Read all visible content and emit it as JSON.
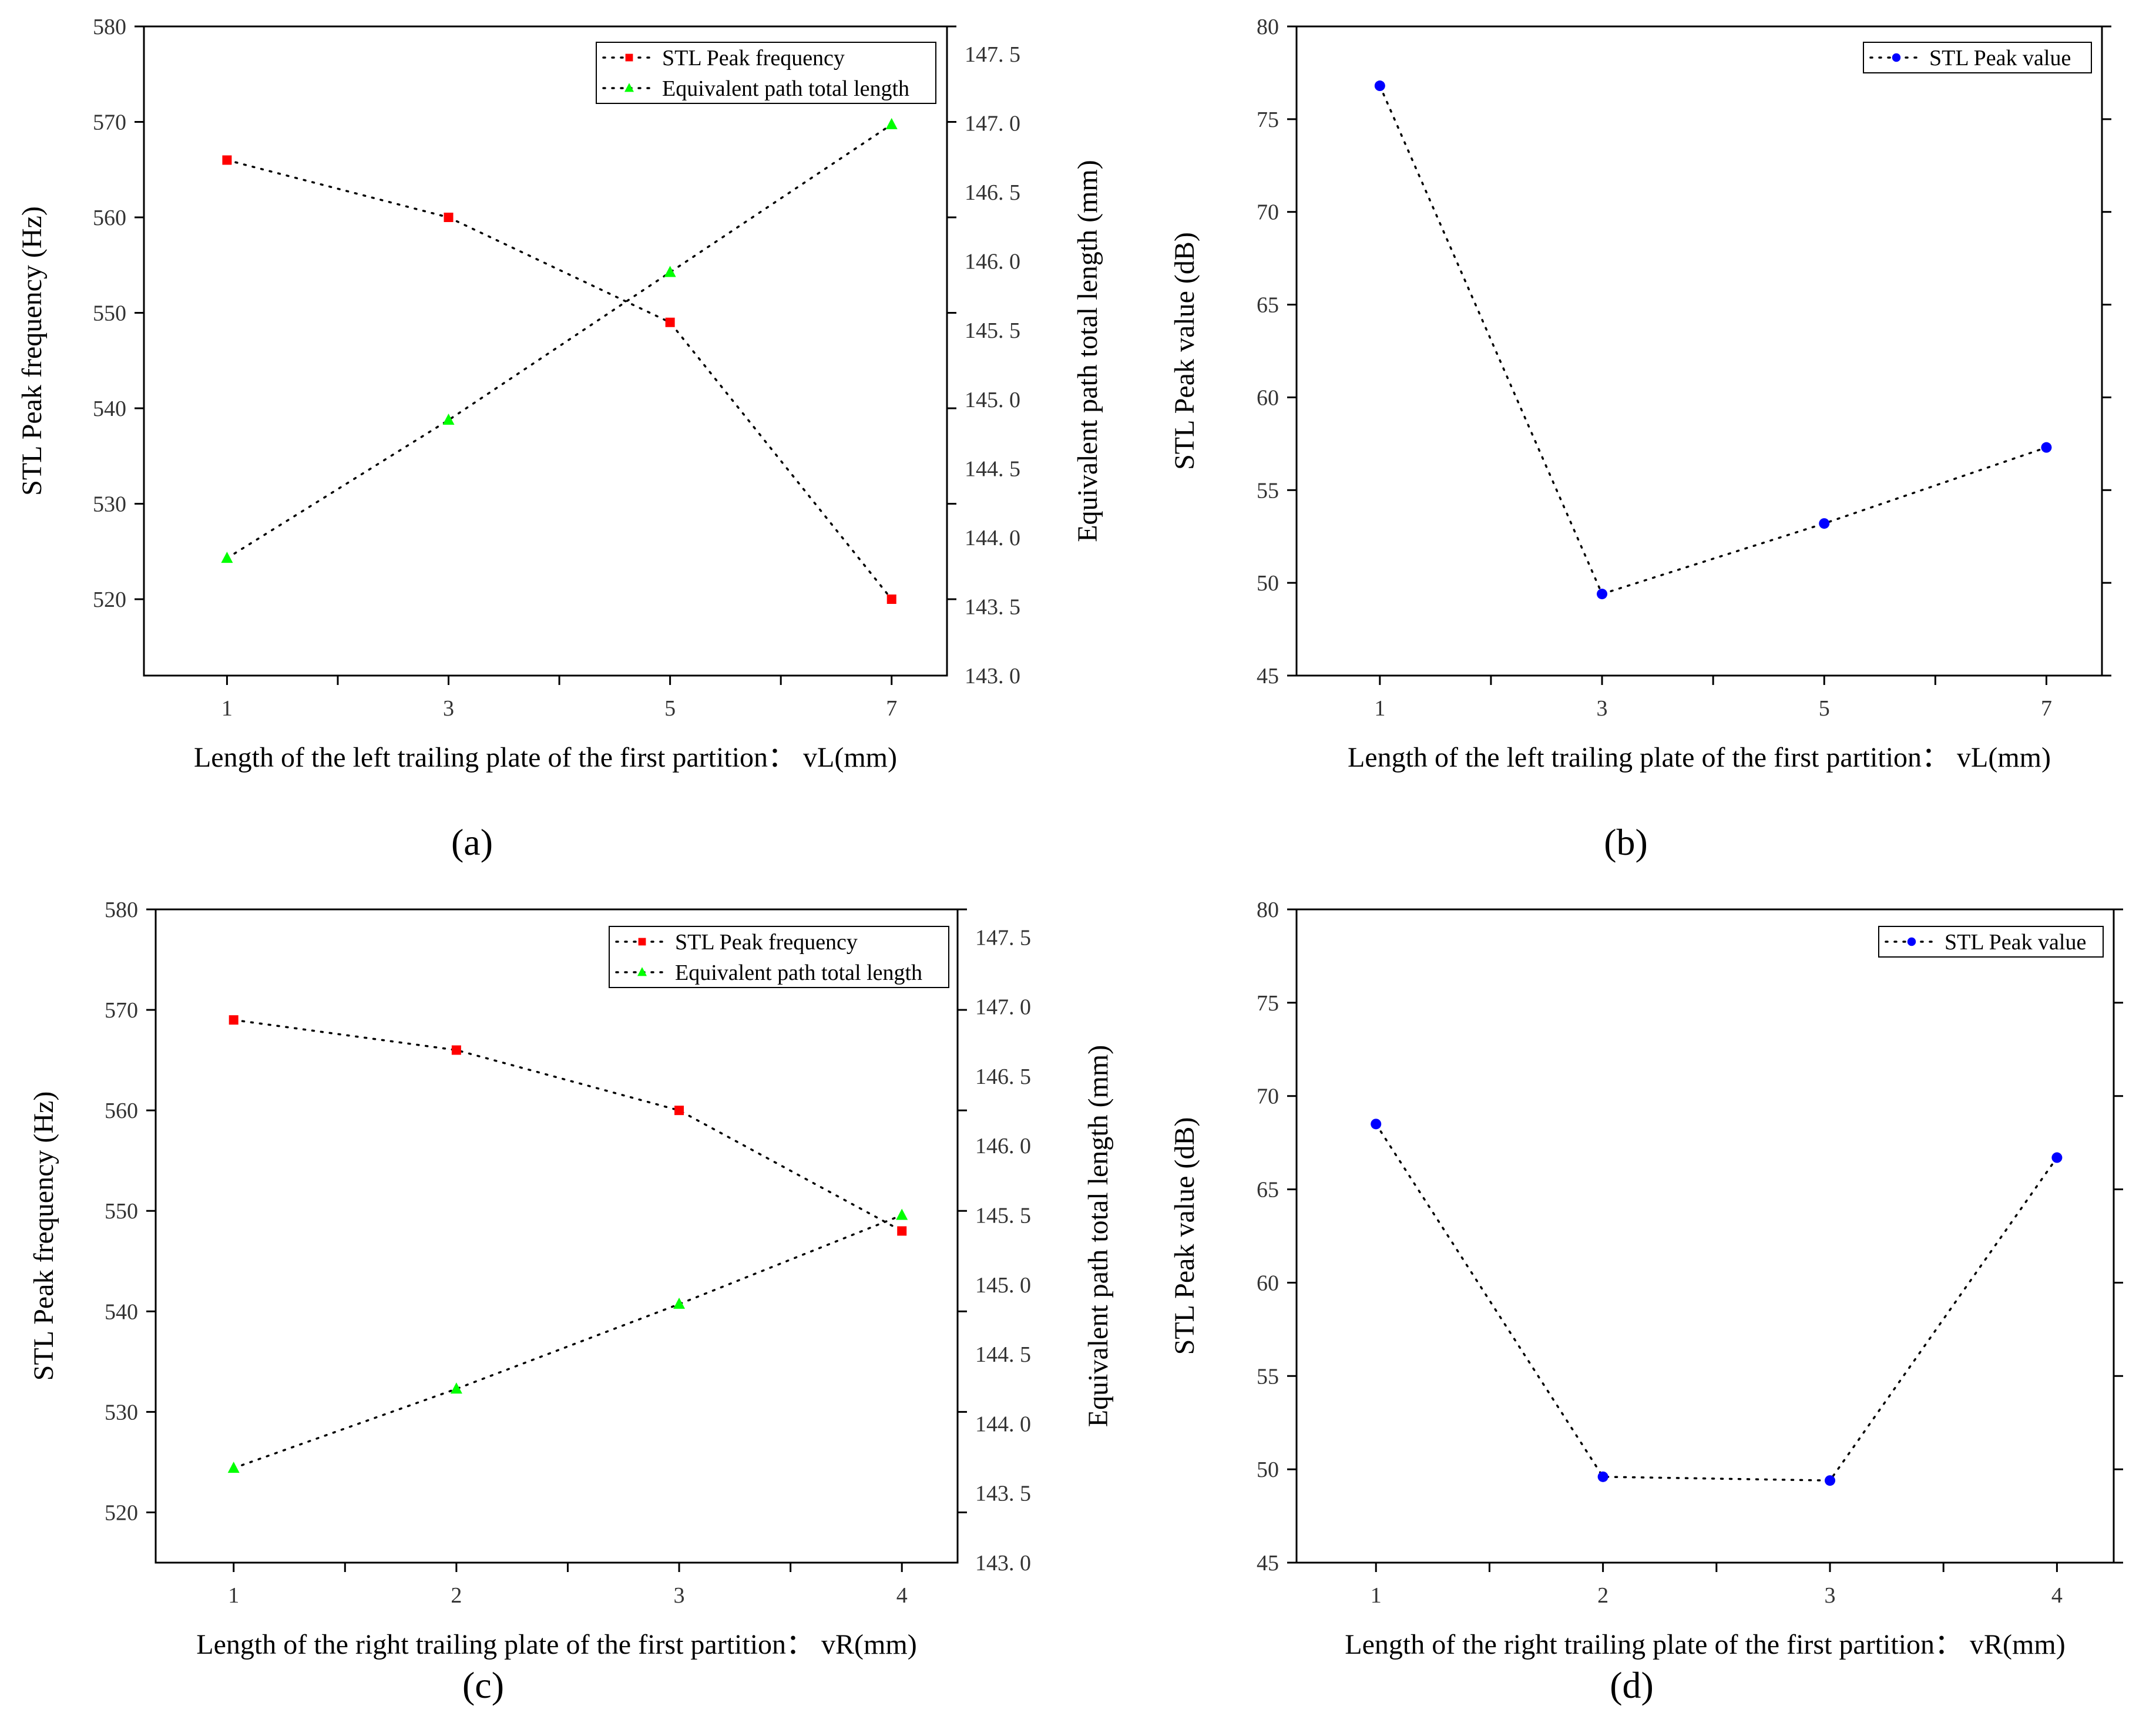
{
  "chart_data": [
    {
      "panel": "a",
      "panel_label": "(a)",
      "type": "line",
      "xlabel": "Length of the left trailing plate of the first partition： vL(mm)",
      "ylabel": "STL Peak frequency (Hz)",
      "y2label": "Equivalent path total length (mm)",
      "xlim": [
        0.25,
        7.5
      ],
      "xticks": [
        1,
        2,
        3,
        4,
        5,
        6,
        7
      ],
      "xtick_labels": [
        "1",
        "",
        "3",
        "",
        "5",
        "",
        "7"
      ],
      "ylim": [
        512,
        580
      ],
      "yticks": [
        520,
        530,
        540,
        550,
        560,
        570,
        580
      ],
      "ytick_labels": [
        "520",
        "530",
        "540",
        "550",
        "560",
        "570",
        "580"
      ],
      "y2lim": [
        143.0,
        147.7
      ],
      "y2ticks": [
        143.0,
        143.5,
        144.0,
        144.5,
        145.0,
        145.5,
        146.0,
        146.5,
        147.0,
        147.5
      ],
      "y2tick_labels": [
        "143. 0",
        "143. 5",
        "144. 0",
        "144. 5",
        "145. 0",
        "145. 5",
        "146. 0",
        "146. 5",
        "147. 0",
        "147. 5"
      ],
      "legend": "top-right",
      "series": [
        {
          "name": "STL Peak frequency",
          "axis": "y",
          "marker": "square",
          "color": "#ff0000",
          "x": [
            1,
            3,
            5,
            7
          ],
          "values": [
            566,
            560,
            549,
            520
          ]
        },
        {
          "name": "Equivalent path total length",
          "axis": "y2",
          "marker": "triangle",
          "color": "#00ff00",
          "x": [
            1,
            3,
            5,
            7
          ],
          "values": [
            143.85,
            144.85,
            145.92,
            146.99
          ]
        }
      ]
    },
    {
      "panel": "b",
      "panel_label": "(b)",
      "type": "line",
      "xlabel": "Length of the left trailing plate of the first partition： vL(mm)",
      "ylabel": "STL Peak value (dB)",
      "xlim": [
        0.25,
        7.5
      ],
      "xticks": [
        1,
        2,
        3,
        4,
        5,
        6,
        7
      ],
      "xtick_labels": [
        "1",
        "",
        "3",
        "",
        "5",
        "",
        "7"
      ],
      "ylim": [
        45,
        80
      ],
      "yticks": [
        45,
        50,
        55,
        60,
        65,
        70,
        75,
        80
      ],
      "ytick_labels": [
        "45",
        "50",
        "55",
        "60",
        "65",
        "70",
        "75",
        "80"
      ],
      "legend": "top-right",
      "series": [
        {
          "name": "STL Peak value",
          "axis": "y",
          "marker": "circle",
          "color": "#0000ff",
          "x": [
            1,
            3,
            5,
            7
          ],
          "values": [
            76.8,
            49.4,
            53.2,
            57.3
          ]
        }
      ]
    },
    {
      "panel": "c",
      "panel_label": "(c)",
      "type": "line",
      "xlabel": "Length of the right trailing plate of the first partition： vR(mm)",
      "ylabel": "STL Peak frequency (Hz)",
      "y2label": "Equivalent path total length (mm)",
      "xlim": [
        0.65,
        4.25
      ],
      "xticks": [
        1,
        1.5,
        2,
        2.5,
        3,
        3.5,
        4
      ],
      "xtick_labels": [
        "1",
        "",
        "2",
        "",
        "3",
        "",
        "4"
      ],
      "ylim": [
        515,
        580
      ],
      "yticks": [
        520,
        530,
        540,
        550,
        560,
        570,
        580
      ],
      "ytick_labels": [
        "520",
        "530",
        "540",
        "550",
        "560",
        "570",
        "580"
      ],
      "y2lim": [
        143.0,
        147.7
      ],
      "y2ticks": [
        143.0,
        143.5,
        144.0,
        144.5,
        145.0,
        145.5,
        146.0,
        146.5,
        147.0,
        147.5
      ],
      "y2tick_labels": [
        "143. 0",
        "143. 5",
        "144. 0",
        "144. 5",
        "145. 0",
        "145. 5",
        "146. 0",
        "146. 5",
        "147. 0",
        "147. 5"
      ],
      "legend": "top-right",
      "series": [
        {
          "name": "STL Peak frequency",
          "axis": "y",
          "marker": "square",
          "color": "#ff0000",
          "x": [
            1,
            2,
            3,
            4
          ],
          "values": [
            569,
            566,
            560,
            548
          ]
        },
        {
          "name": "Equivalent path total length",
          "axis": "y2",
          "marker": "triangle",
          "color": "#00ff00",
          "x": [
            1,
            2,
            3,
            4
          ],
          "values": [
            143.68,
            144.25,
            144.86,
            145.5
          ]
        }
      ]
    },
    {
      "panel": "d",
      "panel_label": "(d)",
      "type": "line",
      "xlabel": "Length of the right trailing plate of the first partition： vR(mm)",
      "ylabel": "STL Peak value (dB)",
      "xlim": [
        0.65,
        4.25
      ],
      "xticks": [
        1,
        1.5,
        2,
        2.5,
        3,
        3.5,
        4
      ],
      "xtick_labels": [
        "1",
        "",
        "2",
        "",
        "3",
        "",
        "4"
      ],
      "ylim": [
        45,
        80
      ],
      "yticks": [
        45,
        50,
        55,
        60,
        65,
        70,
        75,
        80
      ],
      "ytick_labels": [
        "45",
        "50",
        "55",
        "60",
        "65",
        "70",
        "75",
        "80"
      ],
      "legend": "top-right",
      "series": [
        {
          "name": "STL Peak value",
          "axis": "y",
          "marker": "circle",
          "color": "#0000ff",
          "x": [
            1,
            2,
            3,
            4
          ],
          "values": [
            68.5,
            49.6,
            49.4,
            66.7
          ]
        }
      ]
    }
  ]
}
